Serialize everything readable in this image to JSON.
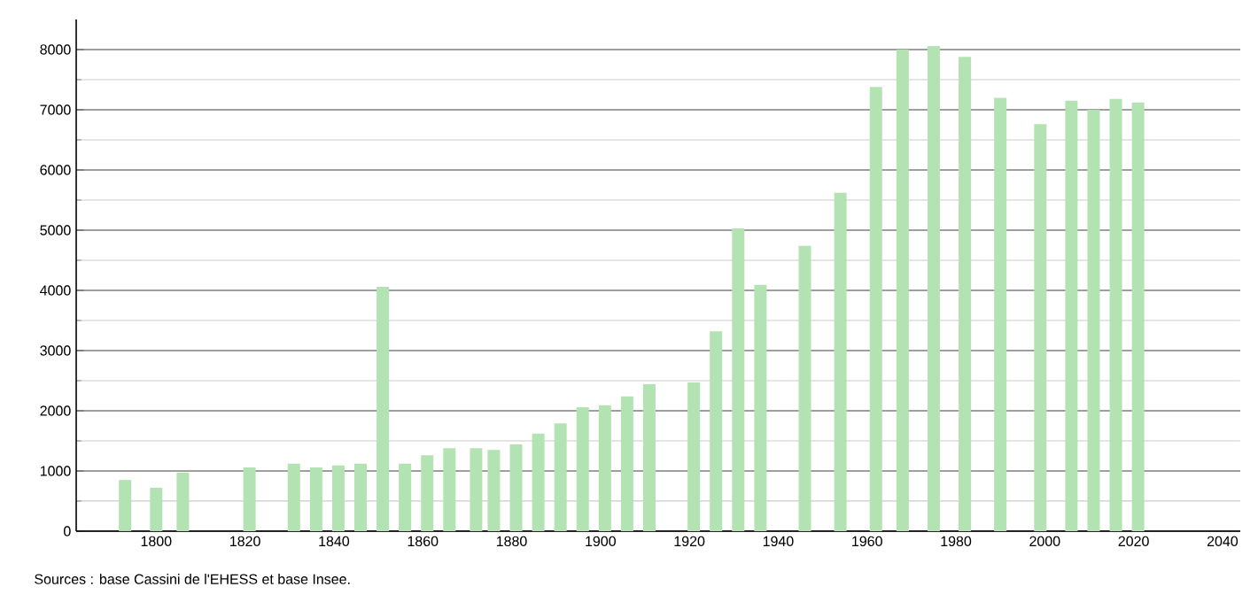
{
  "chart_data": {
    "type": "bar",
    "x": [
      1793,
      1800,
      1806,
      1821,
      1831,
      1836,
      1841,
      1846,
      1851,
      1856,
      1861,
      1866,
      1872,
      1876,
      1881,
      1886,
      1891,
      1896,
      1901,
      1906,
      1911,
      1921,
      1926,
      1931,
      1936,
      1946,
      1954,
      1962,
      1968,
      1975,
      1982,
      1990,
      1999,
      2006,
      2011,
      2016,
      2021
    ],
    "values": [
      850,
      720,
      970,
      1060,
      1120,
      1060,
      1090,
      1120,
      4060,
      1120,
      1260,
      1380,
      1380,
      1350,
      1440,
      1620,
      1790,
      2060,
      2090,
      2240,
      2440,
      2470,
      3320,
      5030,
      4090,
      4740,
      5620,
      7380,
      8000,
      8060,
      7880,
      7200,
      6760,
      7150,
      7000,
      7180,
      7120
    ],
    "color": "#b3e3b3",
    "xlim": [
      1782,
      2044
    ],
    "xticks": [
      1800,
      1820,
      1840,
      1860,
      1880,
      1900,
      1920,
      1940,
      1960,
      1980,
      2000,
      2020,
      2040
    ],
    "ylim": [
      0,
      8500
    ],
    "yticks": [
      0,
      1000,
      2000,
      3000,
      4000,
      5000,
      6000,
      7000,
      8000
    ],
    "grid": "y",
    "annotations": [
      "Sources : base Cassini de l'EHESS et base Insee."
    ]
  }
}
